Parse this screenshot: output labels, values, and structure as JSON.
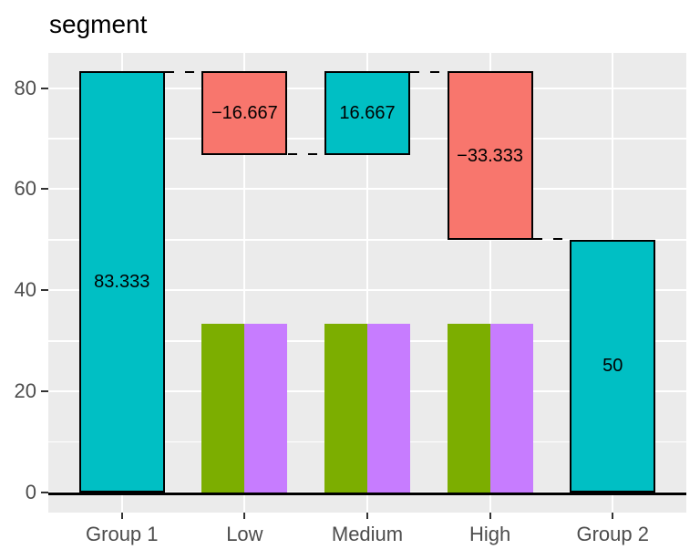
{
  "colors": {
    "teal": "#00BFC4",
    "red": "#F8766D",
    "green": "#7CAE00",
    "purple": "#C77CFF",
    "panel_background": "#EBEBEB",
    "gridline": "#FFFFFF",
    "axis_text": "#4D4D4D",
    "axis_line": "#000000",
    "bar_outline": "#000000",
    "label_text": "#000000",
    "title_text": "#000000"
  },
  "chart_data": {
    "type": "bar",
    "subtype": "waterfall_with_dodged_bars",
    "title": "segment",
    "xlabel": "",
    "ylabel": "",
    "categories": [
      "Group 1",
      "Low",
      "Medium",
      "High",
      "Group 2"
    ],
    "y_axis": {
      "ticks": [
        0,
        20,
        40,
        60,
        80
      ],
      "minor_ticks": [
        10,
        30,
        50,
        70
      ],
      "range": [
        -4,
        87
      ]
    },
    "grid": true,
    "legend_position": "none",
    "waterfall_segments": [
      {
        "category": "Group 1",
        "start": 0,
        "end": 83.333,
        "label": "83.333",
        "color_key": "teal"
      },
      {
        "category": "Low",
        "start": 83.333,
        "end": 66.667,
        "label": "−16.667",
        "color_key": "red"
      },
      {
        "category": "Medium",
        "start": 66.667,
        "end": 83.333,
        "label": "16.667",
        "color_key": "teal"
      },
      {
        "category": "High",
        "start": 83.333,
        "end": 50,
        "label": "−33.333",
        "color_key": "red"
      },
      {
        "category": "Group 2",
        "start": 0,
        "end": 50,
        "label": "50",
        "color_key": "teal"
      }
    ],
    "dodged_bars": [
      {
        "category": "Low",
        "values": [
          {
            "color_key": "green",
            "value": 33.333
          },
          {
            "color_key": "purple",
            "value": 33.333
          }
        ]
      },
      {
        "category": "Medium",
        "values": [
          {
            "color_key": "green",
            "value": 33.333
          },
          {
            "color_key": "purple",
            "value": 33.333
          }
        ]
      },
      {
        "category": "High",
        "values": [
          {
            "color_key": "green",
            "value": 33.333
          },
          {
            "color_key": "purple",
            "value": 33.333
          }
        ]
      }
    ],
    "connectors": [
      {
        "from": "Group 1",
        "to": "Low",
        "level": 83.333
      },
      {
        "from": "Low",
        "to": "Medium",
        "level": 66.667
      },
      {
        "from": "Medium",
        "to": "High",
        "level": 83.333
      },
      {
        "from": "High",
        "to": "Group 2",
        "level": 50
      }
    ]
  }
}
